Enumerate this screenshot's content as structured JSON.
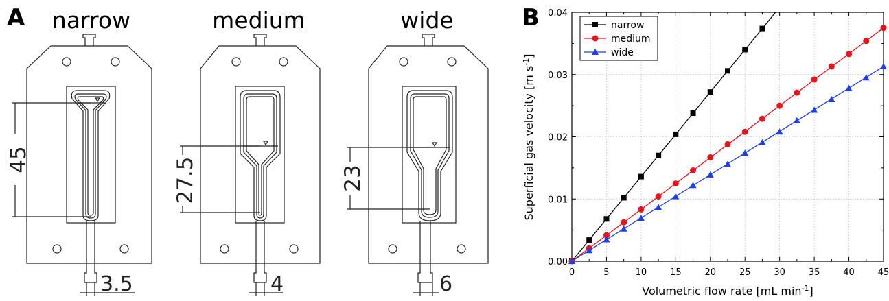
{
  "panel_a": {
    "label": "A",
    "reactors": [
      {
        "name": "narrow",
        "height_dim": "45",
        "width_dim": "3.5"
      },
      {
        "name": "medium",
        "height_dim": "27.5",
        "width_dim": "4"
      },
      {
        "name": "wide",
        "height_dim": "23",
        "width_dim": "6"
      }
    ]
  },
  "panel_b": {
    "label": "B"
  },
  "colors": {
    "narrow": "#000000",
    "medium": "#e8141b",
    "wide": "#1f3fe6"
  },
  "chart_data": {
    "type": "line",
    "xlabel_main": "Volumetric flow rate [mL min",
    "xlabel_sup": "-1",
    "xlabel_end": "]",
    "ylabel_main": "Superficial gas velocity [m s",
    "ylabel_sup": "-1",
    "ylabel_end": "]",
    "xlim": [
      0,
      45
    ],
    "ylim": [
      0,
      0.04
    ],
    "xticks": [
      "0",
      "5",
      "10",
      "15",
      "20",
      "25",
      "30",
      "35",
      "40",
      "45"
    ],
    "yticks": [
      "0.00",
      "0.01",
      "0.02",
      "0.03",
      "0.04"
    ],
    "grid": true,
    "legend_position": "top-left",
    "series": [
      {
        "name": "narrow",
        "marker": "square",
        "x": [
          0,
          2.5,
          5,
          7.5,
          10,
          12.5,
          15,
          17.5,
          20,
          22.5,
          25,
          27.5
        ],
        "y": [
          0,
          0.0034,
          0.0068,
          0.0102,
          0.0136,
          0.017,
          0.0204,
          0.0238,
          0.0272,
          0.0306,
          0.034,
          0.0374
        ]
      },
      {
        "name": "medium",
        "marker": "circle",
        "x": [
          0,
          2.5,
          5,
          7.5,
          10,
          12.5,
          15,
          17.5,
          20,
          22.5,
          25,
          27.5,
          30,
          32.5,
          35,
          37.5,
          40,
          42.5,
          45
        ],
        "y": [
          0,
          0.00208,
          0.00417,
          0.00625,
          0.00833,
          0.0104,
          0.0125,
          0.0146,
          0.0167,
          0.0188,
          0.0208,
          0.0229,
          0.025,
          0.0271,
          0.0292,
          0.0313,
          0.0333,
          0.0354,
          0.0375
        ]
      },
      {
        "name": "wide",
        "marker": "triangle",
        "x": [
          0,
          2.5,
          5,
          7.5,
          10,
          12.5,
          15,
          17.5,
          20,
          22.5,
          25,
          27.5,
          30,
          32.5,
          35,
          37.5,
          40,
          42.5,
          45
        ],
        "y": [
          0,
          0.00174,
          0.00347,
          0.00521,
          0.00694,
          0.00868,
          0.0104,
          0.0122,
          0.0139,
          0.0156,
          0.0174,
          0.0191,
          0.0208,
          0.0226,
          0.0243,
          0.026,
          0.0278,
          0.0295,
          0.0313
        ]
      }
    ]
  }
}
